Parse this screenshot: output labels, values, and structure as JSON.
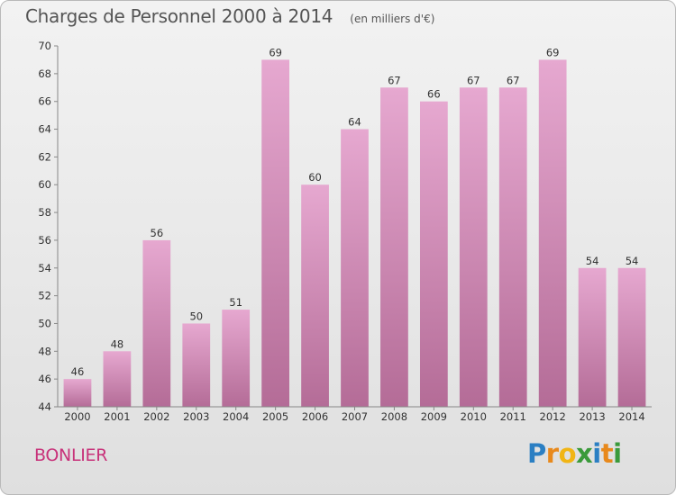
{
  "title": "Charges de Personnel 2000 à 2014",
  "subtitle": "(en milliers d'€)",
  "place": "BONLIER",
  "logo": {
    "text": "Proxiti",
    "letters": [
      {
        "ch": "P",
        "color": "#2b7fc3"
      },
      {
        "ch": "r",
        "color": "#e8891c"
      },
      {
        "ch": "o",
        "color": "#f1b515"
      },
      {
        "ch": "x",
        "color": "#3a9a3a"
      },
      {
        "ch": "i",
        "color": "#2b7fc3"
      },
      {
        "ch": "t",
        "color": "#e8891c"
      },
      {
        "ch": "i",
        "color": "#3a9a3a"
      }
    ]
  },
  "colors": {
    "bar_light": "#e6a8d0",
    "bar_dark": "#b46c97",
    "accent": "#c8327a"
  },
  "chart_data": {
    "type": "bar",
    "title": "Charges de Personnel 2000 à 2014",
    "subtitle": "(en milliers d'€)",
    "categories": [
      "2000",
      "2001",
      "2002",
      "2003",
      "2004",
      "2005",
      "2006",
      "2007",
      "2008",
      "2009",
      "2010",
      "2011",
      "2012",
      "2013",
      "2014"
    ],
    "values": [
      46,
      48,
      56,
      50,
      51,
      69,
      60,
      64,
      67,
      66,
      67,
      67,
      69,
      54,
      54
    ],
    "ylim": [
      44,
      70
    ],
    "yticks": [
      44,
      46,
      48,
      50,
      52,
      54,
      56,
      58,
      60,
      62,
      64,
      66,
      68,
      70
    ],
    "grid": false,
    "data_labels": true
  }
}
